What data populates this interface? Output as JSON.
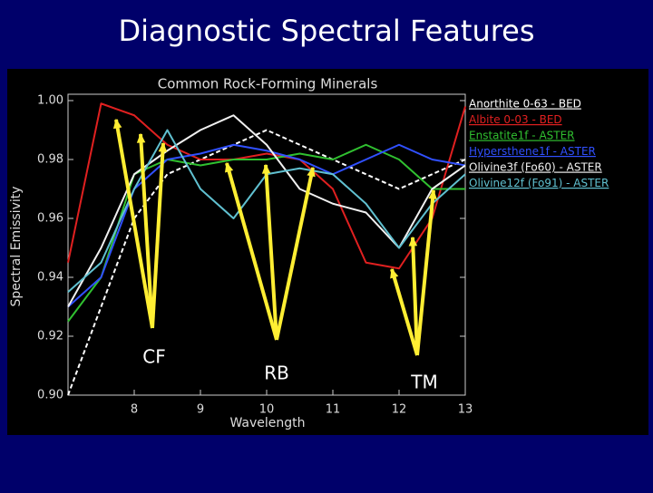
{
  "title": "Diagnostic Spectral Features",
  "chart_data": {
    "type": "line",
    "title": "Common Rock-Forming Minerals",
    "x_label": "Wavelength",
    "y_label": "Spectral Emissivity",
    "x": [
      7,
      7.5,
      8,
      8.5,
      9,
      9.5,
      10,
      10.5,
      11,
      11.5,
      12,
      12.5,
      13
    ],
    "series": [
      {
        "name": "Anorthite 0-63 - BED",
        "color": "#ffffff",
        "dashed": true,
        "values": [
          0.9,
          0.93,
          0.96,
          0.975,
          0.98,
          0.985,
          0.99,
          0.985,
          0.98,
          0.975,
          0.97,
          0.975,
          0.98
        ]
      },
      {
        "name": "Albite 0-03 - BED",
        "color": "#e02020",
        "values": [
          0.945,
          0.999,
          0.995,
          0.985,
          0.98,
          0.98,
          0.982,
          0.98,
          0.97,
          0.945,
          0.943,
          0.96,
          0.998
        ]
      },
      {
        "name": "Enstatite1f - ASTER",
        "color": "#30c030",
        "values": [
          0.925,
          0.94,
          0.975,
          0.98,
          0.978,
          0.98,
          0.98,
          0.982,
          0.98,
          0.985,
          0.98,
          0.97,
          0.97
        ]
      },
      {
        "name": "Hypersthene1f - ASTER",
        "color": "#3050ff",
        "values": [
          0.93,
          0.94,
          0.97,
          0.98,
          0.982,
          0.985,
          0.983,
          0.98,
          0.975,
          0.98,
          0.985,
          0.98,
          0.978
        ]
      },
      {
        "name": "Olivine3f (Fo60) - ASTER",
        "color": "#f0f0f0",
        "values": [
          0.93,
          0.95,
          0.975,
          0.983,
          0.99,
          0.995,
          0.985,
          0.97,
          0.965,
          0.962,
          0.95,
          0.97,
          0.978
        ]
      },
      {
        "name": "Olivine12f (Fo91) - ASTER",
        "color": "#60c0d0",
        "values": [
          0.935,
          0.945,
          0.97,
          0.99,
          0.97,
          0.96,
          0.975,
          0.977,
          0.975,
          0.965,
          0.95,
          0.965,
          0.975
        ]
      }
    ],
    "xlim": [
      7,
      13
    ],
    "xticks": [
      8,
      9,
      10,
      11,
      12,
      13
    ],
    "ylim": [
      0.9,
      1.0
    ],
    "yticks": [
      {
        "value": 0.9,
        "label": "0.90"
      },
      {
        "value": 0.92,
        "label": "0.92"
      },
      {
        "value": 0.94,
        "label": "0.94"
      },
      {
        "value": 0.96,
        "label": "0.96"
      },
      {
        "value": 0.98,
        "label": "0.98"
      },
      {
        "value": 1.0,
        "label": "1.00"
      }
    ],
    "grid": false,
    "annotations": [
      "CF",
      "RB",
      "TM"
    ]
  }
}
